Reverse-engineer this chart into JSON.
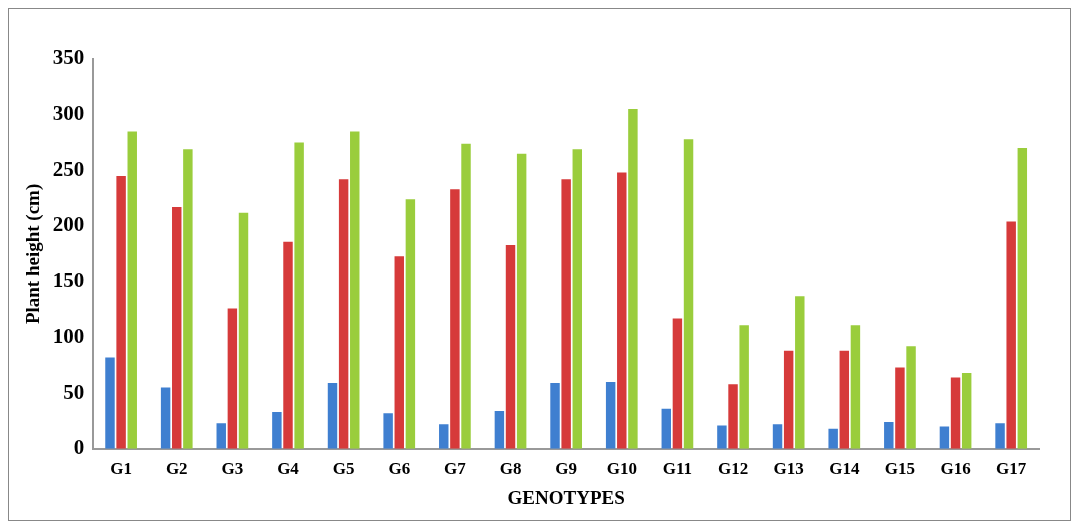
{
  "chart_data": {
    "type": "bar",
    "xlabel": "GENOTYPES",
    "ylabel": "Plant height (cm)",
    "categories": [
      "G1",
      "G2",
      "G3",
      "G4",
      "G5",
      "G6",
      "G7",
      "G8",
      "G9",
      "G10",
      "G11",
      "G12",
      "G13",
      "G14",
      "G15",
      "G16",
      "G17"
    ],
    "series": [
      {
        "color": "#3f7fd0",
        "values": [
          82,
          55,
          23,
          33,
          59,
          32,
          22,
          34,
          59,
          60,
          36,
          21,
          22,
          18,
          24,
          20,
          23
        ]
      },
      {
        "color": "#d63a3a",
        "values": [
          245,
          217,
          126,
          186,
          242,
          173,
          233,
          183,
          242,
          248,
          117,
          58,
          88,
          88,
          73,
          64,
          204
        ]
      },
      {
        "color": "#9acd3c",
        "values": [
          285,
          269,
          212,
          275,
          285,
          224,
          274,
          265,
          269,
          305,
          278,
          111,
          137,
          111,
          92,
          68,
          270
        ]
      }
    ],
    "ylim": [
      0,
      350
    ],
    "yticks": [
      0,
      50,
      100,
      150,
      200,
      250,
      300,
      350
    ],
    "grid": false,
    "legend": false
  }
}
